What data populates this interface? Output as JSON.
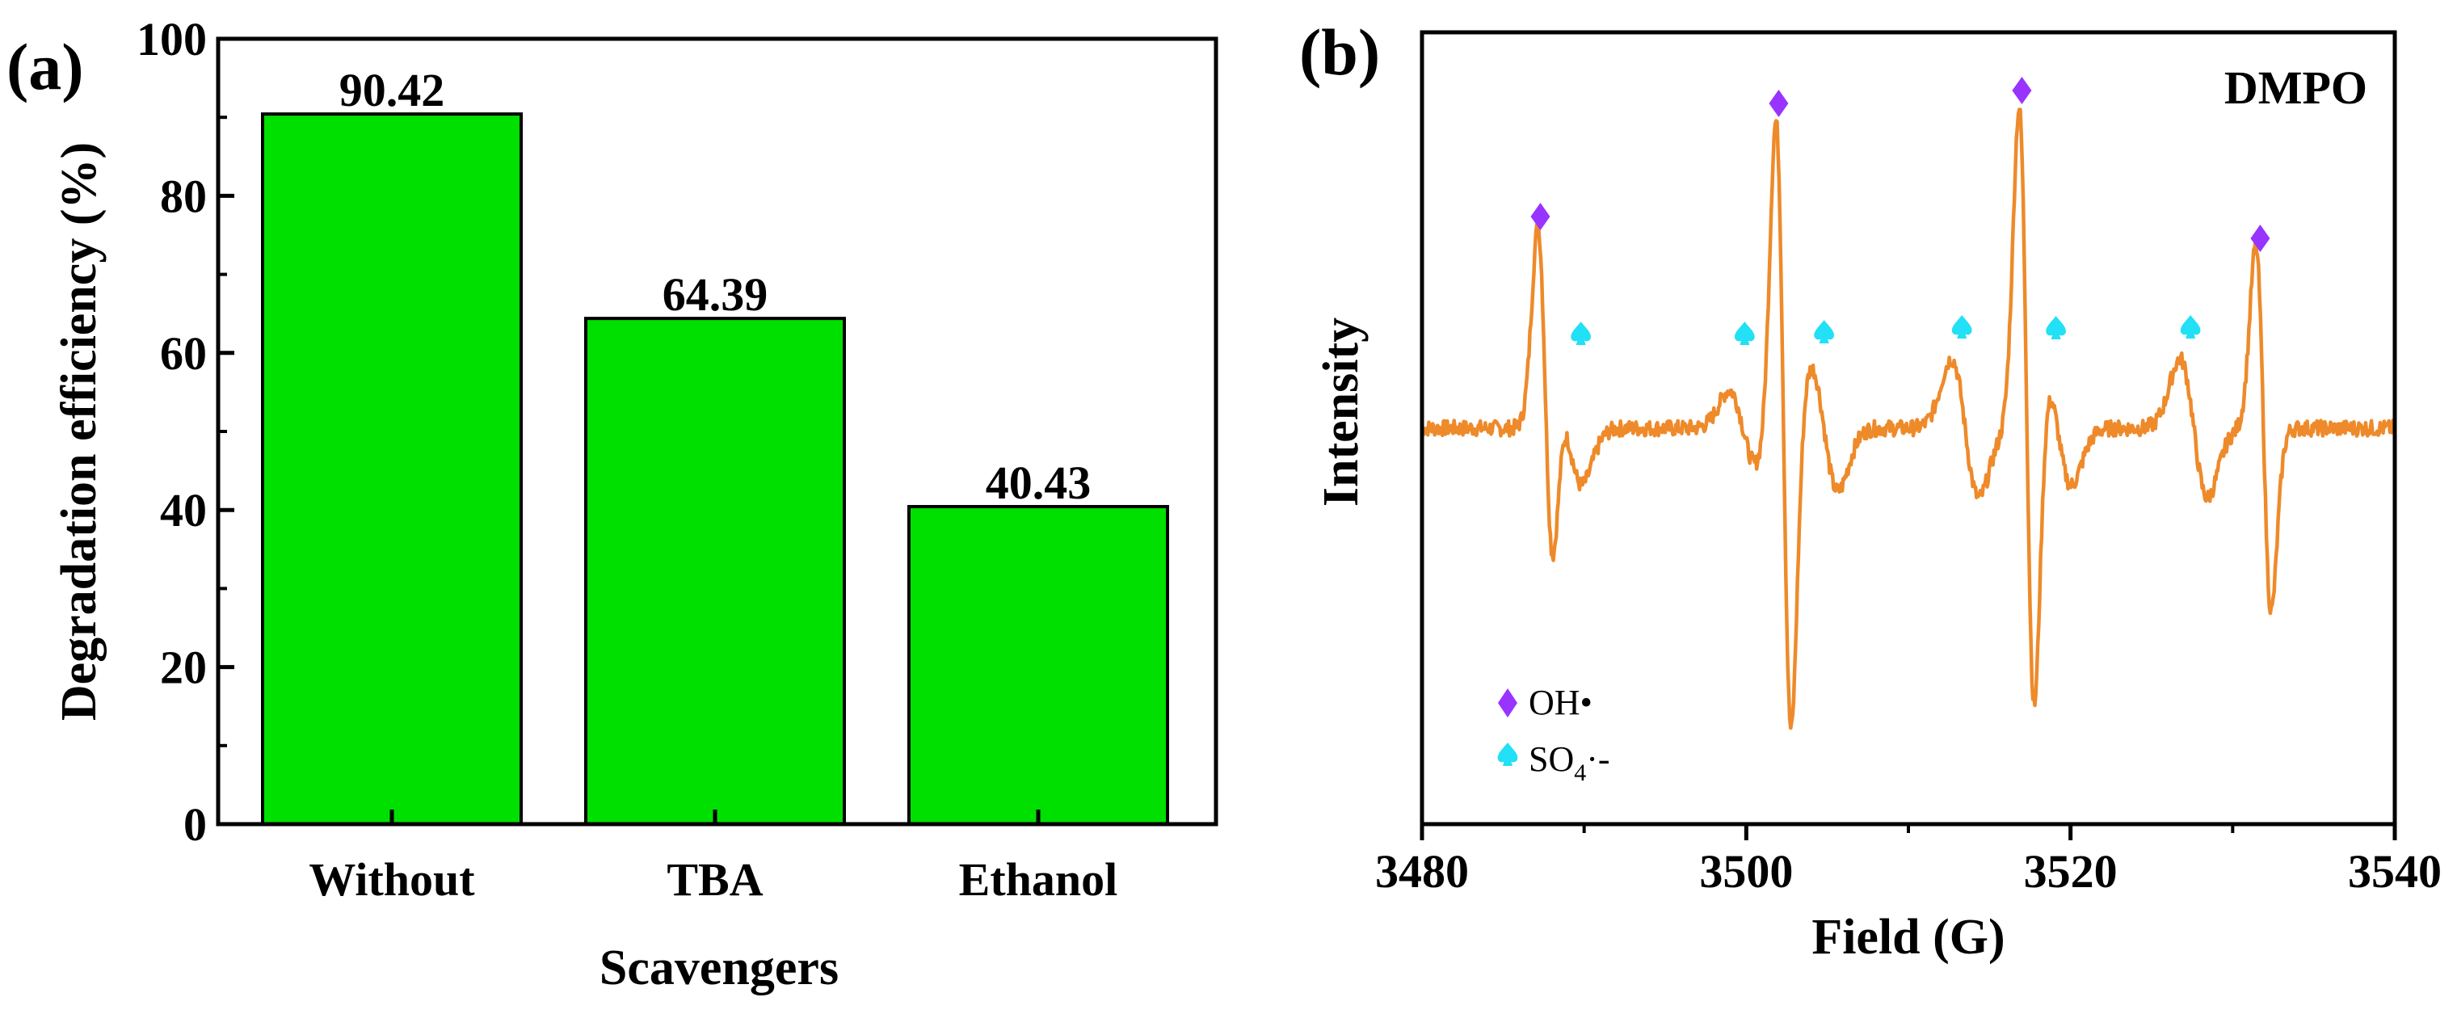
{
  "chart_data": [
    {
      "panel": "(a)",
      "type": "bar",
      "categories": [
        "Without",
        "TBA",
        "Ethanol"
      ],
      "values": [
        90.42,
        64.39,
        40.43
      ],
      "value_labels": [
        "90.42",
        "64.39",
        "40.43"
      ],
      "xlabel": "Scavengers",
      "ylabel": "Degradation efficiency (%)",
      "ylim": [
        0,
        100
      ],
      "yticks": [
        0,
        20,
        40,
        60,
        80,
        100
      ],
      "bar_color": "#00e000"
    },
    {
      "panel": "(b)",
      "type": "line",
      "title": "",
      "annotation": "DMPO",
      "xlabel": "Field (G)",
      "ylabel": "Intensity",
      "xlim": [
        3480,
        3540
      ],
      "xticks": [
        3480,
        3500,
        3520,
        3540
      ],
      "line_color": "#ee8a2a",
      "baseline": 0,
      "ylim_relative": [
        -1.05,
        1.0
      ],
      "spectrum_lines": [
        {
          "center": 3487.6,
          "amplitude": 0.58
        },
        {
          "center": 3502.3,
          "amplitude": 1.0
        },
        {
          "center": 3517.3,
          "amplitude": 1.0
        },
        {
          "center": 3531.9,
          "amplitude": 0.58
        },
        {
          "center": 3489.0,
          "amplitude": 0.18
        },
        {
          "center": 3499.8,
          "amplitude": 0.12
        },
        {
          "center": 3504.8,
          "amplitude": 0.2
        },
        {
          "center": 3513.5,
          "amplitude": 0.22
        },
        {
          "center": 3519.2,
          "amplitude": 0.18
        },
        {
          "center": 3527.6,
          "amplitude": 0.22
        }
      ],
      "oh_markers": [
        3487.3,
        3502.0,
        3517.0,
        3531.7
      ],
      "so4_markers": [
        3489.8,
        3499.9,
        3504.8,
        3513.3,
        3519.1,
        3527.4
      ],
      "series": [
        {
          "name": "OH•",
          "legend": "OH•",
          "marker": "diamond",
          "color": "#9933ff"
        },
        {
          "name": "SO4•-",
          "legend_main": "SO",
          "legend_sub": "4",
          "legend_tail": "·-",
          "marker": "spade",
          "color": "#22e0f5"
        }
      ]
    }
  ]
}
